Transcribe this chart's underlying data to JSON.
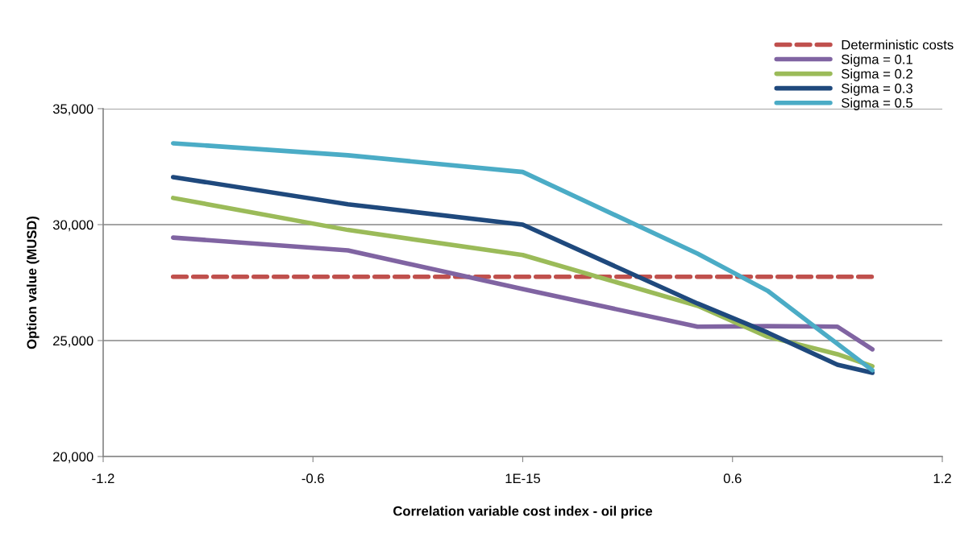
{
  "chart_data": {
    "type": "line",
    "xlabel": "Correlation variable cost index - oil price",
    "ylabel": "Option value (MUSD)",
    "x": [
      -1,
      -0.5,
      0,
      0.5,
      0.7,
      0.9,
      1
    ],
    "xlim": [
      -1.2,
      1.2
    ],
    "xticks": [
      -1.2,
      -0.6,
      {
        "value": 0,
        "label": "1E-15"
      },
      0.6,
      1.2
    ],
    "ylim": [
      20000,
      35000
    ],
    "yticks": [
      {
        "value": 20000,
        "label": "20,000"
      },
      {
        "value": 25000,
        "label": "25,000"
      },
      {
        "value": 30000,
        "label": "30,000"
      },
      {
        "value": 35000,
        "label": "35,000"
      }
    ],
    "grid": "y",
    "legend": "top right",
    "marker": "none",
    "series": [
      {
        "name": "Deterministic costs",
        "color": "#c0504d",
        "line_style": "dashed",
        "values": [
          27750,
          27750,
          27750,
          27750,
          27750,
          27750,
          27750
        ]
      },
      {
        "name": "Sigma = 0.1",
        "color": "#8064a2",
        "values": [
          29440,
          28890,
          27220,
          25600,
          25620,
          25600,
          24620
        ]
      },
      {
        "name": "Sigma = 0.2",
        "color": "#9bbb59",
        "values": [
          31150,
          29770,
          28690,
          26500,
          25170,
          24410,
          23890
        ]
      },
      {
        "name": "Sigma = 0.3",
        "color": "#1f497d",
        "values": [
          32050,
          30880,
          30000,
          26600,
          25350,
          23960,
          23610
        ]
      },
      {
        "name": "Sigma = 0.5",
        "color": "#4bacc6",
        "values": [
          33510,
          32990,
          32270,
          28750,
          27150,
          24860,
          23720
        ]
      }
    ]
  }
}
